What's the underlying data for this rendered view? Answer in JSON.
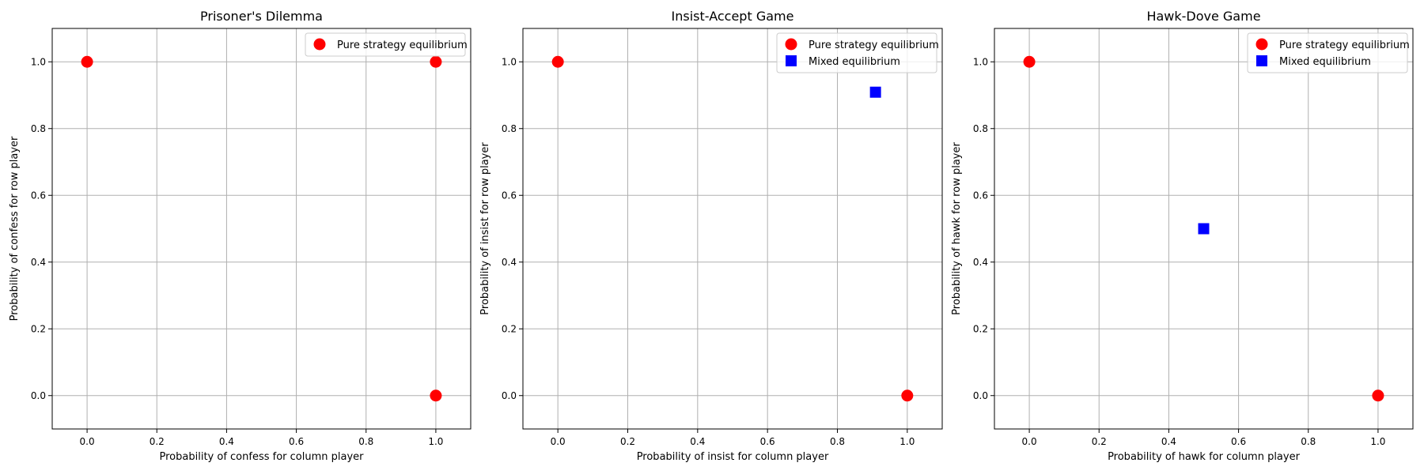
{
  "figure": {
    "colors": {
      "pure": "#ff0000",
      "mixed": "#0000ff",
      "grid": "#b0b0b0",
      "axis": "#000000"
    }
  },
  "chart_data": [
    {
      "type": "scatter",
      "title": "Prisoner's Dilemma",
      "xlabel": "Probability of confess for column player",
      "ylabel": "Probability of confess for row player",
      "xlim": [
        -0.1,
        1.1
      ],
      "ylim": [
        -0.1,
        1.1
      ],
      "grid": true,
      "xticks": [
        "0.0",
        "0.2",
        "0.4",
        "0.6",
        "0.8",
        "1.0"
      ],
      "yticks": [
        "0.0",
        "0.2",
        "0.4",
        "0.6",
        "0.8",
        "1.0"
      ],
      "legend_position": "top-right",
      "series": [
        {
          "name": "Pure strategy equilibrium",
          "marker": "circle",
          "color": "#ff0000",
          "points": [
            {
              "x": 0.0,
              "y": 1.0
            },
            {
              "x": 1.0,
              "y": 1.0
            },
            {
              "x": 1.0,
              "y": 0.0
            }
          ]
        }
      ]
    },
    {
      "type": "scatter",
      "title": "Insist-Accept Game",
      "xlabel": "Probability of insist for column player",
      "ylabel": "Probability of insist for row player",
      "xlim": [
        -0.1,
        1.1
      ],
      "ylim": [
        -0.1,
        1.1
      ],
      "grid": true,
      "xticks": [
        "0.0",
        "0.2",
        "0.4",
        "0.6",
        "0.8",
        "1.0"
      ],
      "yticks": [
        "0.0",
        "0.2",
        "0.4",
        "0.6",
        "0.8",
        "1.0"
      ],
      "legend_position": "top-right",
      "series": [
        {
          "name": "Pure strategy equilibrium",
          "marker": "circle",
          "color": "#ff0000",
          "points": [
            {
              "x": 0.0,
              "y": 1.0
            },
            {
              "x": 1.0,
              "y": 0.0
            }
          ]
        },
        {
          "name": "Mixed equilibrium",
          "marker": "square",
          "color": "#0000ff",
          "points": [
            {
              "x": 0.909,
              "y": 0.909
            }
          ]
        }
      ]
    },
    {
      "type": "scatter",
      "title": "Hawk-Dove Game",
      "xlabel": "Probability of hawk for column player",
      "ylabel": "Probability of hawk for row player",
      "xlim": [
        -0.1,
        1.1
      ],
      "ylim": [
        -0.1,
        1.1
      ],
      "grid": true,
      "xticks": [
        "0.0",
        "0.2",
        "0.4",
        "0.6",
        "0.8",
        "1.0"
      ],
      "yticks": [
        "0.0",
        "0.2",
        "0.4",
        "0.6",
        "0.8",
        "1.0"
      ],
      "legend_position": "top-right",
      "series": [
        {
          "name": "Pure strategy equilibrium",
          "marker": "circle",
          "color": "#ff0000",
          "points": [
            {
              "x": 0.0,
              "y": 1.0
            },
            {
              "x": 1.0,
              "y": 0.0
            }
          ]
        },
        {
          "name": "Mixed equilibrium",
          "marker": "square",
          "color": "#0000ff",
          "points": [
            {
              "x": 0.5,
              "y": 0.5
            }
          ]
        }
      ]
    }
  ]
}
